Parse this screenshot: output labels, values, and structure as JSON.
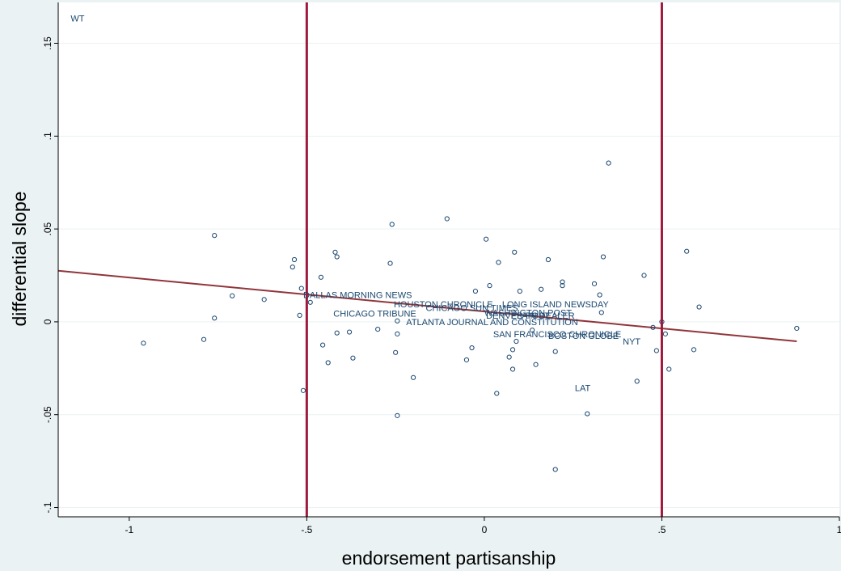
{
  "chart_data": {
    "type": "scatter",
    "title": "",
    "xlabel": "endorsement partisanship",
    "ylabel": "differential slope",
    "xlim": [
      -1.2,
      1.0
    ],
    "ylim": [
      -0.105,
      0.172
    ],
    "xticks": [
      -1,
      -0.5,
      0,
      0.5,
      1
    ],
    "xtick_labels": [
      "-1",
      "-.5",
      "0",
      ".5",
      "1"
    ],
    "yticks": [
      -0.1,
      -0.05,
      0,
      0.05,
      0.1,
      0.15
    ],
    "ytick_labels": [
      "-.1",
      "-.05",
      "0",
      ".05",
      ".1",
      ".15"
    ],
    "grid": true,
    "legend": "none",
    "vlines": [
      -0.5,
      0.5
    ],
    "fit_line": {
      "x": [
        -1.2,
        0.88
      ],
      "y": [
        0.0275,
        -0.0105
      ]
    },
    "colors": {
      "background": "#eaf2f3",
      "plot_background": "#ffffff",
      "grid": "#eaf2f3",
      "markers": "#1a476f",
      "fit_line": "#90353b",
      "reference_lines": "#a0183a"
    },
    "points": [
      {
        "x": -0.96,
        "y": -0.0115
      },
      {
        "x": -0.79,
        "y": -0.0095
      },
      {
        "x": -0.76,
        "y": 0.0465
      },
      {
        "x": -0.76,
        "y": 0.002
      },
      {
        "x": -0.71,
        "y": 0.014
      },
      {
        "x": -0.62,
        "y": 0.012
      },
      {
        "x": -0.535,
        "y": 0.0335
      },
      {
        "x": -0.54,
        "y": 0.0295
      },
      {
        "x": -0.515,
        "y": 0.018
      },
      {
        "x": -0.51,
        "y": -0.037
      },
      {
        "x": -0.52,
        "y": 0.0035
      },
      {
        "x": -0.49,
        "y": 0.0105
      },
      {
        "x": -0.46,
        "y": 0.024
      },
      {
        "x": -0.455,
        "y": -0.0125
      },
      {
        "x": -0.44,
        "y": -0.022
      },
      {
        "x": -0.42,
        "y": 0.0375
      },
      {
        "x": -0.415,
        "y": 0.035
      },
      {
        "x": -0.415,
        "y": -0.006
      },
      {
        "x": -0.38,
        "y": -0.0055
      },
      {
        "x": -0.37,
        "y": -0.0195
      },
      {
        "x": -0.3,
        "y": -0.004
      },
      {
        "x": -0.265,
        "y": 0.0315
      },
      {
        "x": -0.26,
        "y": 0.0525
      },
      {
        "x": -0.25,
        "y": -0.0165
      },
      {
        "x": -0.245,
        "y": -0.0505
      },
      {
        "x": -0.245,
        "y": 0.0005
      },
      {
        "x": -0.245,
        "y": -0.0065
      },
      {
        "x": -0.2,
        "y": -0.03
      },
      {
        "x": -0.105,
        "y": 0.0555
      },
      {
        "x": -0.05,
        "y": -0.0205
      },
      {
        "x": -0.035,
        "y": -0.014
      },
      {
        "x": -0.025,
        "y": 0.0165
      },
      {
        "x": 0.005,
        "y": 0.0445
      },
      {
        "x": 0.015,
        "y": 0.0195
      },
      {
        "x": 0.035,
        "y": -0.0385
      },
      {
        "x": 0.04,
        "y": 0.032
      },
      {
        "x": 0.07,
        "y": -0.019
      },
      {
        "x": 0.08,
        "y": -0.0255
      },
      {
        "x": 0.08,
        "y": -0.015
      },
      {
        "x": 0.085,
        "y": 0.0375
      },
      {
        "x": 0.09,
        "y": -0.0105
      },
      {
        "x": 0.1,
        "y": 0.0165
      },
      {
        "x": 0.135,
        "y": -0.0045
      },
      {
        "x": 0.145,
        "y": -0.023
      },
      {
        "x": 0.16,
        "y": 0.0175
      },
      {
        "x": 0.18,
        "y": 0.0335
      },
      {
        "x": 0.2,
        "y": -0.0795
      },
      {
        "x": 0.2,
        "y": -0.016
      },
      {
        "x": 0.22,
        "y": 0.0215
      },
      {
        "x": 0.22,
        "y": 0.0195
      },
      {
        "x": 0.29,
        "y": -0.0495
      },
      {
        "x": 0.31,
        "y": 0.0205
      },
      {
        "x": 0.325,
        "y": 0.0145
      },
      {
        "x": 0.33,
        "y": 0.005
      },
      {
        "x": 0.335,
        "y": 0.035
      },
      {
        "x": 0.35,
        "y": 0.0855
      },
      {
        "x": 0.43,
        "y": -0.032
      },
      {
        "x": 0.45,
        "y": 0.025
      },
      {
        "x": 0.475,
        "y": -0.003
      },
      {
        "x": 0.485,
        "y": -0.0155
      },
      {
        "x": 0.5,
        "y": 0.0
      },
      {
        "x": 0.51,
        "y": -0.0065
      },
      {
        "x": 0.52,
        "y": -0.0255
      },
      {
        "x": 0.57,
        "y": 0.038
      },
      {
        "x": 0.59,
        "y": -0.015
      },
      {
        "x": 0.605,
        "y": 0.008
      },
      {
        "x": 0.88,
        "y": -0.0035
      }
    ],
    "labels": [
      {
        "text": "WT",
        "x": -1.165,
        "y": 0.1635
      },
      {
        "text": "DALLAS MORNING NEWS",
        "x": -0.51,
        "y": 0.0145
      },
      {
        "text": "HOUSTON CHRONICLE",
        "x": -0.255,
        "y": 0.0095
      },
      {
        "text": "CHICAGO SUN TIMES",
        "x": -0.165,
        "y": 0.0075
      },
      {
        "text": "LONG ISLAND NEWSDAY",
        "x": 0.05,
        "y": 0.0095
      },
      {
        "text": "WASHINGTON POST",
        "x": 0.0,
        "y": 0.005
      },
      {
        "text": "DENVER POST",
        "x": 0.005,
        "y": 0.0035
      },
      {
        "text": "PLAIN DEALER",
        "x": 0.075,
        "y": 0.0035
      },
      {
        "text": "CHICAGO TRIBUNE",
        "x": -0.425,
        "y": 0.0045
      },
      {
        "text": "ATLANTA JOURNAL AND CONSTITUTION",
        "x": -0.22,
        "y": 0.0
      },
      {
        "text": "SAN FRANCISCO CHRONICLE",
        "x": 0.025,
        "y": -0.0065
      },
      {
        "text": "BOSTON GLOBE",
        "x": 0.18,
        "y": -0.0075
      },
      {
        "text": "NYT",
        "x": 0.39,
        "y": -0.0105
      },
      {
        "text": "LAT",
        "x": 0.255,
        "y": -0.0355
      }
    ]
  }
}
